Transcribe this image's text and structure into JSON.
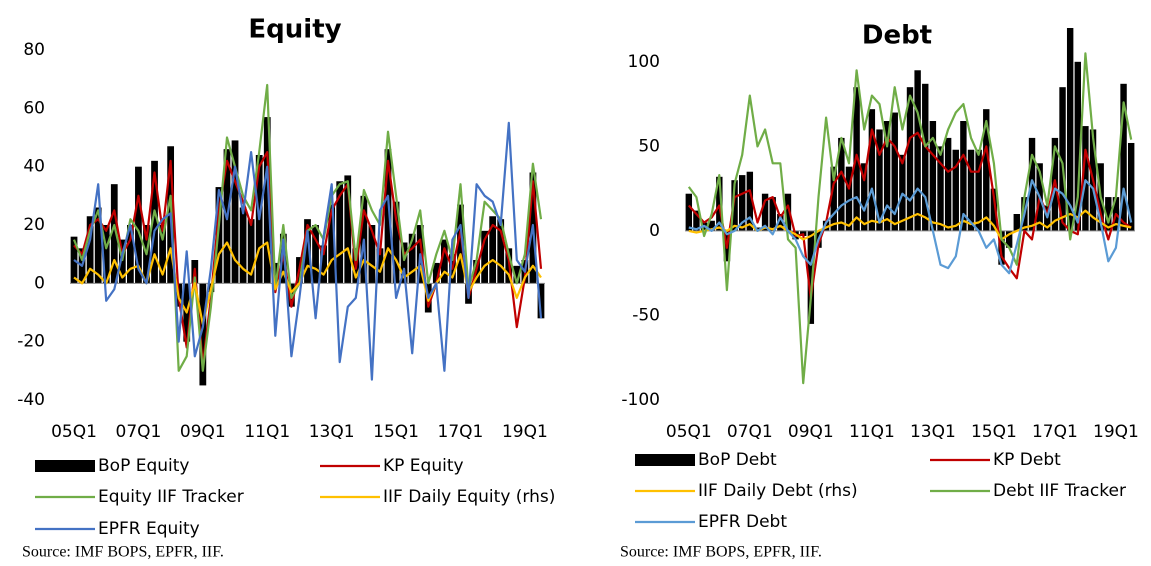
{
  "chart_data": [
    {
      "type": "bar_line",
      "title": "Equity",
      "source": "Source: IMF BOPS, EPFR, IIF.",
      "categories": [
        "05Q1",
        null,
        null,
        null,
        null,
        null,
        null,
        null,
        "07Q1",
        null,
        null,
        null,
        null,
        null,
        null,
        null,
        "09Q1",
        null,
        null,
        null,
        null,
        null,
        null,
        null,
        "11Q1",
        null,
        null,
        null,
        null,
        null,
        null,
        null,
        "13Q1",
        null,
        null,
        null,
        null,
        null,
        null,
        null,
        "15Q1",
        null,
        null,
        null,
        null,
        null,
        null,
        null,
        "17Q1",
        null,
        null,
        null,
        null,
        null,
        null,
        null,
        "19Q1",
        null,
        null
      ],
      "ylim": [
        -40,
        80
      ],
      "yticks": [
        -40,
        -20,
        0,
        20,
        40,
        60,
        80
      ],
      "series": [
        {
          "name": "BoP Equity",
          "kind": "bar",
          "color": "#000000",
          "values": [
            16,
            12,
            23,
            26,
            20,
            34,
            15,
            20,
            40,
            20,
            42,
            20,
            47,
            -8,
            -20,
            8,
            -35,
            -3,
            33,
            46,
            49,
            26,
            22,
            44,
            57,
            7,
            17,
            -8,
            9,
            22,
            20,
            13,
            27,
            35,
            37,
            12,
            30,
            20,
            12,
            46,
            28,
            14,
            17,
            20,
            -10,
            7,
            15,
            10,
            27,
            -7,
            8,
            18,
            23,
            22,
            12,
            6,
            8,
            38,
            -12
          ]
        },
        {
          "name": "KP Equity",
          "kind": "line",
          "color": "#c00000",
          "values": [
            13,
            10,
            20,
            22,
            18,
            25,
            10,
            15,
            30,
            15,
            38,
            18,
            42,
            -5,
            -22,
            5,
            -28,
            -5,
            25,
            42,
            35,
            28,
            20,
            40,
            45,
            -3,
            10,
            -8,
            5,
            20,
            15,
            10,
            25,
            30,
            34,
            5,
            25,
            18,
            10,
            42,
            22,
            10,
            12,
            15,
            -8,
            0,
            12,
            5,
            18,
            -5,
            5,
            15,
            20,
            18,
            8,
            -15,
            2,
            35,
            5
          ]
        },
        {
          "name": "Equity IIF Tracker",
          "kind": "line",
          "color": "#70ad47",
          "values": [
            15,
            8,
            18,
            25,
            12,
            20,
            8,
            22,
            18,
            10,
            25,
            15,
            30,
            -30,
            -25,
            2,
            -30,
            -8,
            20,
            50,
            40,
            30,
            25,
            45,
            68,
            -2,
            20,
            -5,
            0,
            18,
            20,
            15,
            30,
            34,
            35,
            8,
            32,
            25,
            20,
            52,
            30,
            8,
            15,
            25,
            0,
            10,
            18,
            8,
            34,
            -2,
            8,
            28,
            25,
            22,
            10,
            0,
            10,
            41,
            22
          ]
        },
        {
          "name": "IIF Daily Equity (rhs)",
          "kind": "line",
          "color": "#ffc000",
          "values": [
            2,
            0,
            5,
            3,
            0,
            8,
            2,
            5,
            6,
            0,
            10,
            3,
            12,
            -5,
            -10,
            0,
            -14,
            -2,
            10,
            14,
            8,
            5,
            3,
            12,
            14,
            -2,
            4,
            -3,
            0,
            6,
            5,
            3,
            8,
            10,
            12,
            2,
            8,
            6,
            4,
            12,
            8,
            2,
            4,
            6,
            -6,
            0,
            4,
            2,
            10,
            -3,
            2,
            6,
            8,
            6,
            3,
            -5,
            2,
            6,
            2
          ]
        },
        {
          "name": "EPFR Equity",
          "kind": "line",
          "color": "#4472c4",
          "values": [
            8,
            6,
            15,
            34,
            -6,
            -2,
            10,
            20,
            5,
            0,
            18,
            22,
            24,
            -20,
            11,
            -25,
            -15,
            5,
            32,
            22,
            40,
            24,
            45,
            22,
            40,
            -18,
            15,
            -25,
            -5,
            18,
            -12,
            16,
            34,
            -27,
            -8,
            -5,
            15,
            -33,
            25,
            30,
            -5,
            5,
            -24,
            10,
            -5,
            0,
            -30,
            15,
            20,
            -5,
            34,
            30,
            28,
            20,
            55,
            8,
            4,
            20,
            -12
          ]
        }
      ]
    },
    {
      "type": "bar_line",
      "title": "Debt",
      "source": "Source: IMF BOPS, EPFR, IIF.",
      "categories": [
        "05Q1",
        null,
        null,
        null,
        null,
        null,
        null,
        null,
        "07Q1",
        null,
        null,
        null,
        null,
        null,
        null,
        null,
        "09Q1",
        null,
        null,
        null,
        null,
        null,
        null,
        null,
        "11Q1",
        null,
        null,
        null,
        null,
        null,
        null,
        null,
        "13Q1",
        null,
        null,
        null,
        null,
        null,
        null,
        null,
        "15Q1",
        null,
        null,
        null,
        null,
        null,
        null,
        null,
        "17Q1",
        null,
        null,
        null,
        null,
        null,
        null,
        null,
        "19Q1",
        null,
        null
      ],
      "ylim": [
        -100,
        120
      ],
      "yticks": [
        -100,
        -50,
        0,
        50,
        100
      ],
      "series": [
        {
          "name": "BoP Debt",
          "kind": "bar",
          "color": "#000000",
          "values": [
            22,
            12,
            5,
            6,
            32,
            -18,
            30,
            33,
            35,
            2,
            22,
            20,
            10,
            22,
            -5,
            -3,
            -55,
            -10,
            6,
            38,
            55,
            38,
            85,
            40,
            72,
            60,
            65,
            70,
            45,
            85,
            95,
            87,
            65,
            50,
            55,
            48,
            65,
            48,
            48,
            72,
            25,
            -20,
            -10,
            10,
            20,
            55,
            40,
            15,
            55,
            85,
            120,
            100,
            62,
            60,
            40,
            20,
            20,
            87,
            52
          ]
        },
        {
          "name": "KP Debt",
          "kind": "line",
          "color": "#c00000",
          "values": [
            15,
            10,
            5,
            8,
            15,
            -10,
            20,
            22,
            24,
            5,
            18,
            20,
            8,
            15,
            -3,
            -2,
            -40,
            -8,
            5,
            28,
            35,
            25,
            45,
            30,
            60,
            45,
            55,
            50,
            40,
            55,
            58,
            50,
            45,
            40,
            35,
            38,
            45,
            35,
            35,
            50,
            20,
            -15,
            -22,
            -28,
            0,
            -5,
            20,
            10,
            30,
            5,
            0,
            -2,
            48,
            30,
            10,
            -5,
            10,
            5,
            2
          ]
        },
        {
          "name": "IIF Daily Debt (rhs)",
          "kind": "line",
          "color": "#ffc000",
          "values": [
            0,
            -1,
            0,
            1,
            2,
            0,
            3,
            2,
            4,
            0,
            2,
            1,
            3,
            0,
            -2,
            -5,
            -3,
            0,
            2,
            4,
            5,
            3,
            8,
            4,
            6,
            5,
            7,
            4,
            6,
            8,
            10,
            8,
            5,
            4,
            2,
            3,
            6,
            4,
            5,
            8,
            3,
            -5,
            -2,
            0,
            2,
            3,
            5,
            2,
            6,
            8,
            10,
            8,
            12,
            8,
            5,
            2,
            4,
            3,
            2
          ]
        },
        {
          "name": "Debt IIF Tracker",
          "kind": "line",
          "color": "#70ad47",
          "values": [
            26,
            20,
            -3,
            10,
            33,
            -35,
            28,
            45,
            80,
            50,
            60,
            40,
            40,
            -5,
            -10,
            -90,
            -40,
            20,
            67,
            30,
            55,
            40,
            95,
            60,
            80,
            75,
            50,
            85,
            60,
            80,
            70,
            50,
            55,
            45,
            60,
            70,
            75,
            55,
            45,
            65,
            40,
            -5,
            -10,
            -20,
            20,
            45,
            35,
            15,
            50,
            40,
            -5,
            20,
            105,
            55,
            20,
            5,
            20,
            76,
            54
          ]
        },
        {
          "name": "EPFR Debt",
          "kind": "line",
          "color": "#5b9bd5",
          "values": [
            2,
            1,
            3,
            0,
            5,
            -2,
            0,
            5,
            8,
            0,
            3,
            -2,
            8,
            0,
            -5,
            -15,
            -20,
            -5,
            5,
            10,
            15,
            18,
            20,
            12,
            25,
            5,
            15,
            10,
            22,
            18,
            25,
            20,
            0,
            -20,
            -22,
            -15,
            10,
            5,
            0,
            -10,
            -5,
            -20,
            -25,
            -8,
            10,
            30,
            20,
            8,
            25,
            22,
            15,
            5,
            30,
            25,
            5,
            -18,
            -10,
            25,
            5
          ]
        }
      ]
    }
  ]
}
